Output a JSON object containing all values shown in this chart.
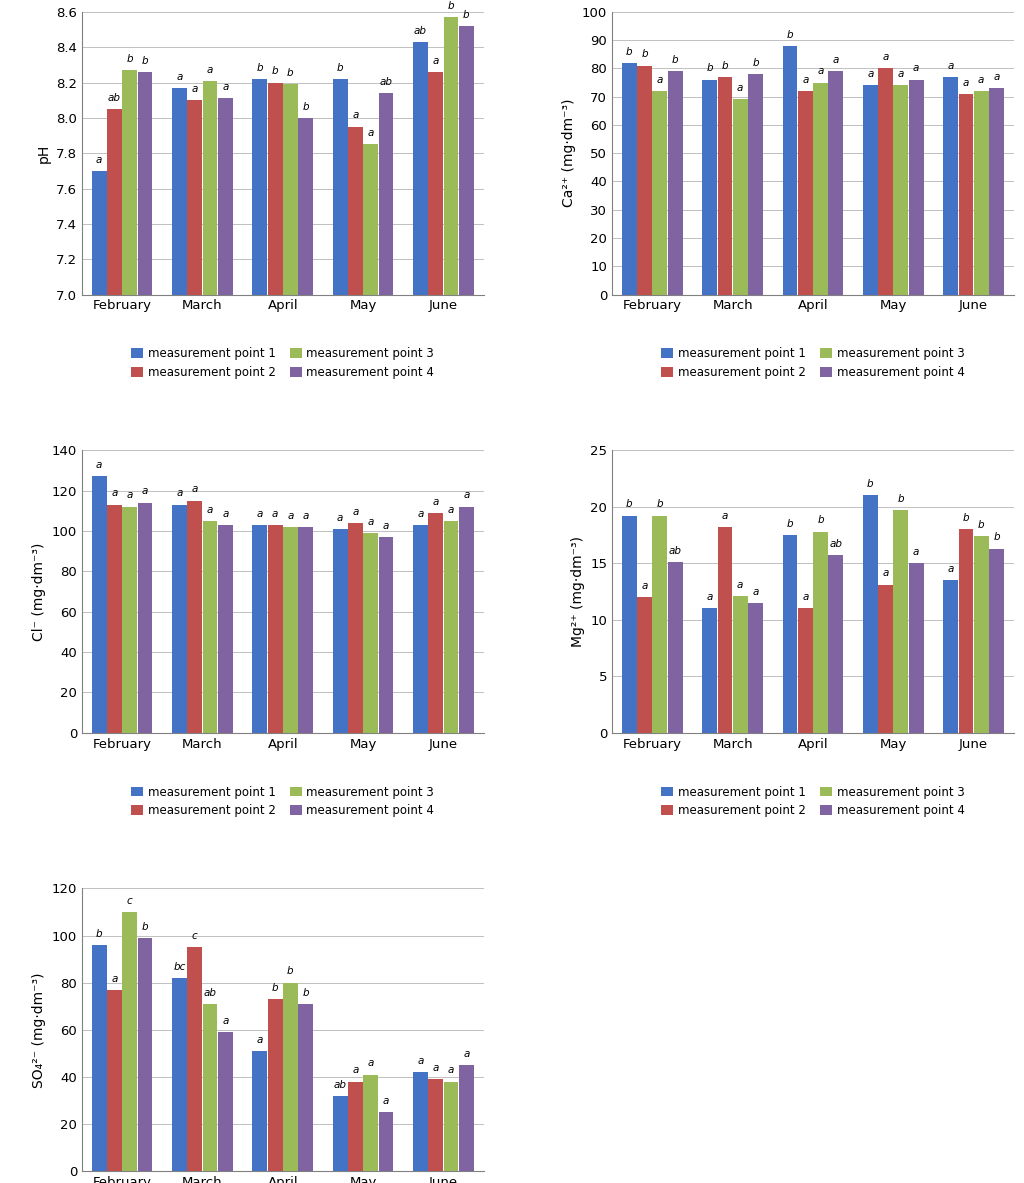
{
  "months": [
    "February",
    "March",
    "April",
    "May",
    "June"
  ],
  "colors": [
    "#4472C4",
    "#C0504D",
    "#9BBB59",
    "#8064A2"
  ],
  "legend_labels": [
    "measurement point 1",
    "measurement point 2",
    "measurement point 3",
    "measurement point 4"
  ],
  "ph": {
    "ylabel": "pH",
    "ylim": [
      7.0,
      8.6
    ],
    "yticks": [
      7.0,
      7.2,
      7.4,
      7.6,
      7.8,
      8.0,
      8.2,
      8.4,
      8.6
    ],
    "values": [
      [
        7.7,
        8.17,
        8.22,
        8.22,
        8.43
      ],
      [
        8.05,
        8.1,
        8.2,
        7.95,
        8.26
      ],
      [
        8.27,
        8.21,
        8.19,
        7.85,
        8.57
      ],
      [
        8.26,
        8.11,
        8.0,
        8.14,
        8.52
      ]
    ],
    "annotations": [
      [
        [
          "a",
          0
        ],
        [
          "a",
          1
        ],
        [
          "b",
          2
        ],
        [
          "b",
          3
        ],
        [
          "ab",
          4
        ]
      ],
      [
        [
          "ab",
          0
        ],
        [
          "a",
          1
        ],
        [
          "b",
          2
        ],
        [
          "a",
          3
        ],
        [
          "a",
          4
        ]
      ],
      [
        [
          "b",
          0
        ],
        [
          "a",
          1
        ],
        [
          "b",
          2
        ],
        [
          "a",
          3
        ],
        [
          "b",
          4
        ]
      ],
      [
        [
          "b",
          0
        ],
        [
          "a",
          1
        ],
        [
          "b",
          2
        ],
        [
          "ab",
          3
        ],
        [
          "b",
          4
        ]
      ]
    ]
  },
  "ca": {
    "ylabel": "Ca²⁺ (mg·dm⁻³)",
    "ylim": [
      0,
      100
    ],
    "yticks": [
      0,
      10,
      20,
      30,
      40,
      50,
      60,
      70,
      80,
      90,
      100
    ],
    "values": [
      [
        82,
        76,
        88,
        74,
        77
      ],
      [
        81,
        77,
        72,
        80,
        71
      ],
      [
        72,
        69,
        75,
        74,
        72
      ],
      [
        79,
        78,
        79,
        76,
        73
      ]
    ],
    "annotations": [
      [
        [
          "b",
          0
        ],
        [
          "b",
          1
        ],
        [
          "b",
          2
        ],
        [
          "a",
          3
        ],
        [
          "a",
          4
        ]
      ],
      [
        [
          "b",
          0
        ],
        [
          "b",
          1
        ],
        [
          "a",
          2
        ],
        [
          "a",
          3
        ],
        [
          "a",
          4
        ]
      ],
      [
        [
          "a",
          0
        ],
        [
          "a",
          1
        ],
        [
          "a",
          2
        ],
        [
          "a",
          3
        ],
        [
          "a",
          4
        ]
      ],
      [
        [
          "b",
          0
        ],
        [
          "b",
          1
        ],
        [
          "a",
          2
        ],
        [
          "a",
          3
        ],
        [
          "a",
          4
        ]
      ]
    ]
  },
  "cl": {
    "ylabel": "Cl⁻ (mg·dm⁻³)",
    "ylim": [
      0,
      140
    ],
    "yticks": [
      0,
      20,
      40,
      60,
      80,
      100,
      120,
      140
    ],
    "values": [
      [
        127,
        113,
        103,
        101,
        103
      ],
      [
        113,
        115,
        103,
        104,
        109
      ],
      [
        112,
        105,
        102,
        99,
        105
      ],
      [
        114,
        103,
        102,
        97,
        112
      ]
    ],
    "annotations": [
      [
        [
          "a",
          0
        ],
        [
          "a",
          1
        ],
        [
          "a",
          2
        ],
        [
          "a",
          3
        ],
        [
          "a",
          4
        ]
      ],
      [
        [
          "a",
          0
        ],
        [
          "a",
          1
        ],
        [
          "a",
          2
        ],
        [
          "a",
          3
        ],
        [
          "a",
          4
        ]
      ],
      [
        [
          "a",
          0
        ],
        [
          "a",
          1
        ],
        [
          "a",
          2
        ],
        [
          "a",
          3
        ],
        [
          "a",
          4
        ]
      ],
      [
        [
          "a",
          0
        ],
        [
          "a",
          1
        ],
        [
          "a",
          2
        ],
        [
          "a",
          3
        ],
        [
          "a",
          4
        ]
      ]
    ]
  },
  "mg": {
    "ylabel": "Mg²⁺ (mg·dm⁻³)",
    "ylim": [
      0,
      25
    ],
    "yticks": [
      0,
      5,
      10,
      15,
      20,
      25
    ],
    "values": [
      [
        19.2,
        11.0,
        17.5,
        21.0,
        13.5
      ],
      [
        12.0,
        18.2,
        11.0,
        13.1,
        18.0
      ],
      [
        19.2,
        12.1,
        17.8,
        19.7,
        17.4
      ],
      [
        15.1,
        11.5,
        15.7,
        15.0,
        16.3
      ]
    ],
    "annotations": [
      [
        [
          "b",
          0
        ],
        [
          "a",
          1
        ],
        [
          "b",
          2
        ],
        [
          "b",
          3
        ],
        [
          "a",
          4
        ]
      ],
      [
        [
          "a",
          0
        ],
        [
          "a",
          1
        ],
        [
          "a",
          2
        ],
        [
          "a",
          3
        ],
        [
          "b",
          4
        ]
      ],
      [
        [
          "b",
          0
        ],
        [
          "a",
          1
        ],
        [
          "b",
          2
        ],
        [
          "b",
          3
        ],
        [
          "b",
          4
        ]
      ],
      [
        [
          "ab",
          0
        ],
        [
          "a",
          1
        ],
        [
          "ab",
          2
        ],
        [
          "a",
          3
        ],
        [
          "b",
          4
        ]
      ]
    ]
  },
  "so4": {
    "ylabel": "SO₄²⁻ (mg·dm⁻³)",
    "ylim": [
      0,
      120
    ],
    "yticks": [
      0,
      20,
      40,
      60,
      80,
      100,
      120
    ],
    "values": [
      [
        96,
        82,
        51,
        32,
        42
      ],
      [
        77,
        95,
        73,
        38,
        39
      ],
      [
        110,
        71,
        80,
        41,
        38
      ],
      [
        99,
        59,
        71,
        25,
        45
      ]
    ],
    "annotations": [
      [
        [
          "b",
          0
        ],
        [
          "bc",
          1
        ],
        [
          "a",
          2
        ],
        [
          "ab",
          3
        ],
        [
          "a",
          4
        ]
      ],
      [
        [
          "a",
          0
        ],
        [
          "c",
          1
        ],
        [
          "b",
          2
        ],
        [
          "a",
          3
        ],
        [
          "a",
          4
        ]
      ],
      [
        [
          "c",
          0
        ],
        [
          "ab",
          1
        ],
        [
          "b",
          2
        ],
        [
          "a",
          3
        ],
        [
          "a",
          4
        ]
      ],
      [
        [
          "b",
          0
        ],
        [
          "a",
          1
        ],
        [
          "b",
          2
        ],
        [
          "a",
          3
        ],
        [
          "a",
          4
        ]
      ]
    ]
  }
}
